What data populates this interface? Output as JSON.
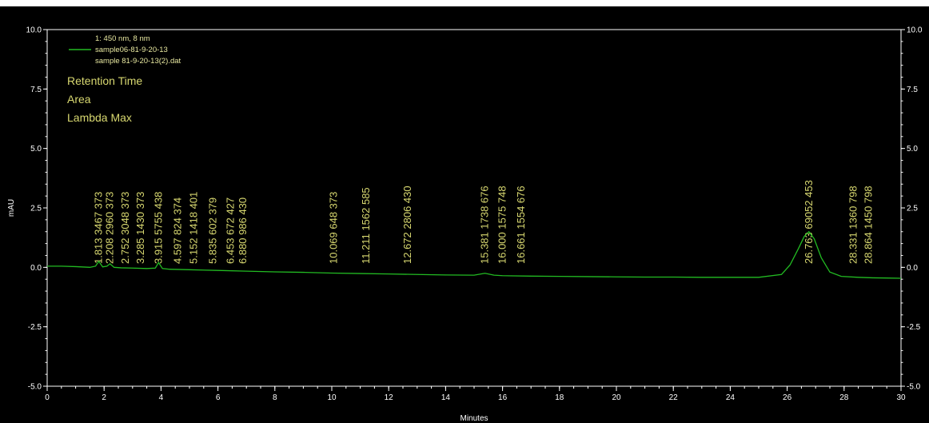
{
  "chart_data": {
    "type": "line",
    "xlabel": "Minutes",
    "ylabel": "mAU",
    "xlim": [
      0,
      30
    ],
    "ylim": [
      -5,
      10
    ],
    "x_ticks": [
      "0",
      "2",
      "4",
      "6",
      "8",
      "10",
      "12",
      "14",
      "16",
      "18",
      "20",
      "22",
      "24",
      "26",
      "28",
      "30"
    ],
    "y_ticks": [
      "-5.0",
      "-2.5",
      "0.0",
      "2.5",
      "5.0",
      "7.5",
      "10.0"
    ],
    "y_tick_values": [
      -5,
      -2.5,
      0,
      2.5,
      5,
      7.5,
      10
    ],
    "legend": {
      "lines": [
        "1: 450 nm, 8 nm",
        "sample06-81-9-20-13",
        "sample 81-9-20-13(2).dat"
      ],
      "annotation_fields": [
        "Retention Time",
        "Area",
        "Lambda Max"
      ]
    },
    "series": [
      {
        "name": "sample06-81-9-20-13",
        "color": "#22bb22",
        "x": [
          0,
          0.5,
          1.0,
          1.5,
          1.7,
          1.813,
          1.95,
          2.1,
          2.208,
          2.35,
          2.6,
          3.0,
          3.5,
          3.8,
          3.915,
          4.05,
          4.3,
          5,
          6,
          7,
          8,
          9,
          10,
          11,
          12,
          13,
          14,
          15,
          15.381,
          15.7,
          16,
          17,
          18,
          19,
          20,
          21,
          22,
          23,
          24,
          25,
          25.8,
          26.1,
          26.4,
          26.6,
          26.763,
          26.95,
          27.2,
          27.5,
          27.9,
          28.5,
          29,
          29.5,
          30
        ],
        "y": [
          0.05,
          0.05,
          0.03,
          0.0,
          0.05,
          0.25,
          0.02,
          0.05,
          0.15,
          0.0,
          -0.02,
          -0.03,
          -0.05,
          -0.03,
          0.2,
          -0.05,
          -0.08,
          -0.1,
          -0.13,
          -0.16,
          -0.19,
          -0.21,
          -0.24,
          -0.26,
          -0.28,
          -0.3,
          -0.32,
          -0.33,
          -0.25,
          -0.33,
          -0.35,
          -0.37,
          -0.38,
          -0.39,
          -0.4,
          -0.41,
          -0.41,
          -0.42,
          -0.42,
          -0.42,
          -0.3,
          0.1,
          0.8,
          1.3,
          1.5,
          1.2,
          0.4,
          -0.2,
          -0.38,
          -0.42,
          -0.44,
          -0.45,
          -0.46
        ]
      }
    ],
    "annotations": [
      {
        "rt": "1.813",
        "area": "3467",
        "lambda": "373"
      },
      {
        "rt": "2.208",
        "area": "2960",
        "lambda": "373"
      },
      {
        "rt": "2.752",
        "area": "3048",
        "lambda": "373"
      },
      {
        "rt": "3.285",
        "area": "1430",
        "lambda": "373"
      },
      {
        "rt": "3.915",
        "area": "5755",
        "lambda": "438"
      },
      {
        "rt": "4.597",
        "area": "824",
        "lambda": "374"
      },
      {
        "rt": "5.152",
        "area": "1418",
        "lambda": "401"
      },
      {
        "rt": "5.835",
        "area": "602",
        "lambda": "379"
      },
      {
        "rt": "6.453",
        "area": "672",
        "lambda": "427"
      },
      {
        "rt": "6.880",
        "area": "986",
        "lambda": "430"
      },
      {
        "rt": "10.069",
        "area": "648",
        "lambda": "373"
      },
      {
        "rt": "11.211",
        "area": "1562",
        "lambda": "585"
      },
      {
        "rt": "12.672",
        "area": "2806",
        "lambda": "430"
      },
      {
        "rt": "15.381",
        "area": "1738",
        "lambda": "676"
      },
      {
        "rt": "16.000",
        "area": "1575",
        "lambda": "748"
      },
      {
        "rt": "16.661",
        "area": "1554",
        "lambda": "676"
      },
      {
        "rt": "26.763",
        "area": "69052",
        "lambda": "453"
      },
      {
        "rt": "28.331",
        "area": "1360",
        "lambda": "798"
      },
      {
        "rt": "28.864",
        "area": "1450",
        "lambda": "798"
      }
    ],
    "colors": {
      "plot_background": "#000000",
      "frame_background": "#000000",
      "axis": "#ffffff",
      "trace": "#22bb22",
      "annotation_text": "#d8d870"
    }
  }
}
